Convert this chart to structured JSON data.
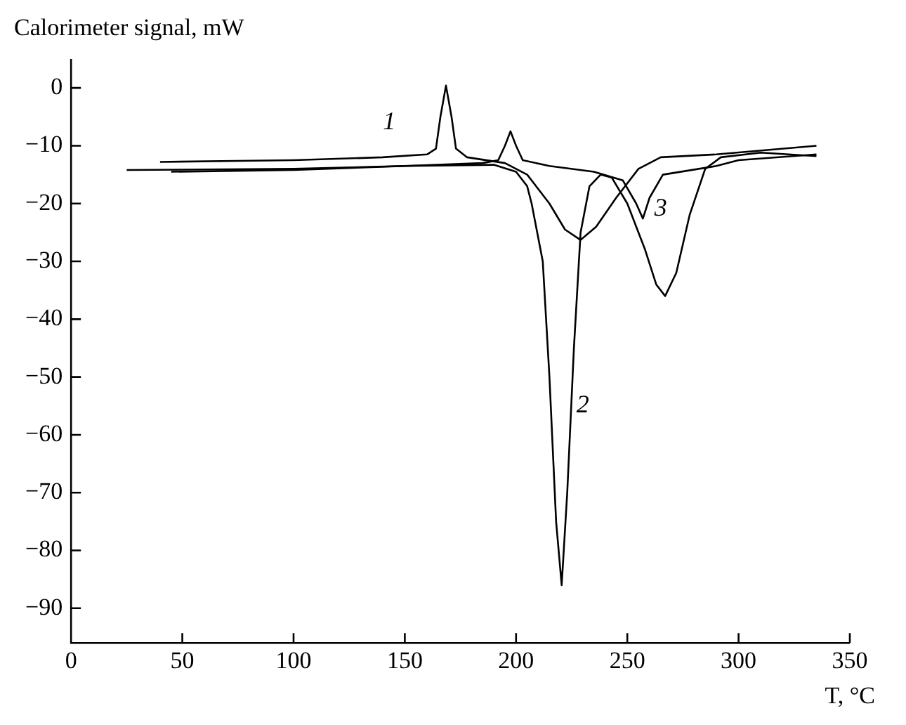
{
  "chart_data": {
    "type": "line",
    "ylabel": "Calorimeter signal, mW",
    "xlabel": "T, °C",
    "xlim": [
      0,
      350
    ],
    "xticks": [
      0,
      50,
      100,
      150,
      200,
      250,
      300,
      350
    ],
    "ylim": [
      -96,
      5
    ],
    "yticks": [
      0,
      -10,
      -20,
      -30,
      -40,
      -50,
      -60,
      -70,
      -80,
      -90
    ],
    "grid": false,
    "legend": false,
    "marker": "none",
    "line_style": "solid",
    "series": [
      {
        "name": "1",
        "color": "#000000",
        "x": [
          40,
          100,
          140,
          160,
          164,
          166,
          168.5,
          171,
          173,
          178,
          195,
          205,
          215,
          222,
          229,
          236,
          245,
          255,
          265,
          290,
          335
        ],
        "values": [
          -12.8,
          -12.5,
          -12,
          -11.5,
          -10.5,
          -5,
          0.4,
          -5,
          -10.5,
          -12,
          -13,
          -15,
          -20,
          -24.5,
          -26.3,
          -24,
          -19,
          -14,
          -12,
          -11.5,
          -10
        ]
      },
      {
        "name": "2",
        "color": "#000000",
        "x": [
          25,
          100,
          150,
          190,
          200,
          205,
          207,
          212,
          215,
          218,
          220.5,
          223,
          226,
          229,
          233,
          238,
          243,
          250,
          258,
          263,
          267,
          272,
          278,
          285,
          292,
          310,
          335
        ],
        "values": [
          -14.2,
          -14,
          -13.5,
          -13.3,
          -14.5,
          -17,
          -20,
          -30,
          -50,
          -75,
          -86,
          -70,
          -45,
          -25,
          -17,
          -15,
          -15.5,
          -20,
          -28,
          -34,
          -36,
          -32,
          -22,
          -14,
          -12,
          -11.2,
          -11.8
        ]
      },
      {
        "name": "3",
        "color": "#000000",
        "x": [
          45,
          100,
          150,
          185,
          192,
          195,
          197.5,
          200,
          203,
          215,
          235,
          248,
          254,
          257,
          260,
          266,
          290,
          300,
          335
        ],
        "values": [
          -14.5,
          -14.2,
          -13.5,
          -13,
          -12.5,
          -10,
          -7.5,
          -10,
          -12.5,
          -13.5,
          -14.5,
          -16,
          -20,
          -22.6,
          -19,
          -15,
          -13.5,
          -12.5,
          -11.5
        ]
      }
    ]
  }
}
